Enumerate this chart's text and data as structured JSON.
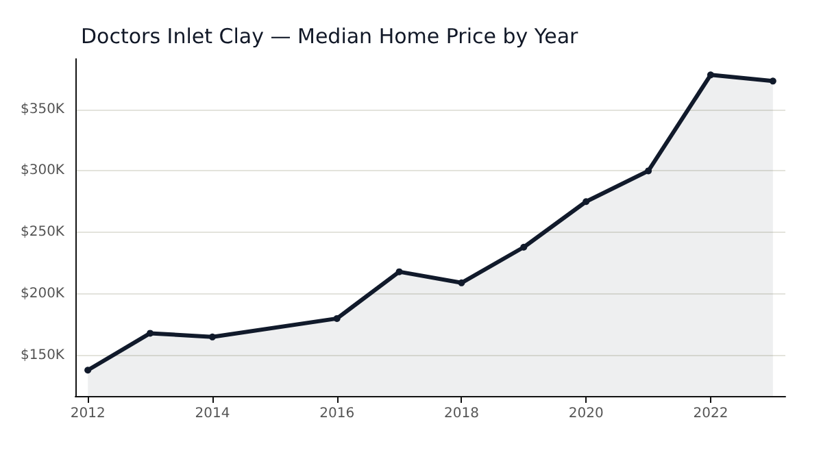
{
  "chart_data": {
    "type": "area",
    "title": "Doctors Inlet Clay — Median Home Price by Year",
    "x": [
      2012,
      2013,
      2014,
      2016,
      2017,
      2018,
      2019,
      2020,
      2021,
      2022,
      2023
    ],
    "series": [
      {
        "color": "#111a2b",
        "values": [
          138000,
          168000,
          165000,
          180000,
          218000,
          209000,
          238000,
          275000,
          300000,
          378000,
          373000
        ]
      }
    ],
    "xlim": [
      2011.8,
      2023.2
    ],
    "xticks": [
      2012,
      2014,
      2016,
      2018,
      2020,
      2022
    ],
    "ylim": [
      117000,
      391000
    ],
    "yticks": [
      {
        "value": 150000,
        "label": "$150K"
      },
      {
        "value": 200000,
        "label": "$200K"
      },
      {
        "value": 250000,
        "label": "$250K"
      },
      {
        "value": 300000,
        "label": "$300K"
      },
      {
        "value": 350000,
        "label": "$350K"
      }
    ],
    "grid": "y",
    "marker": "circle",
    "line_style": "solid"
  }
}
